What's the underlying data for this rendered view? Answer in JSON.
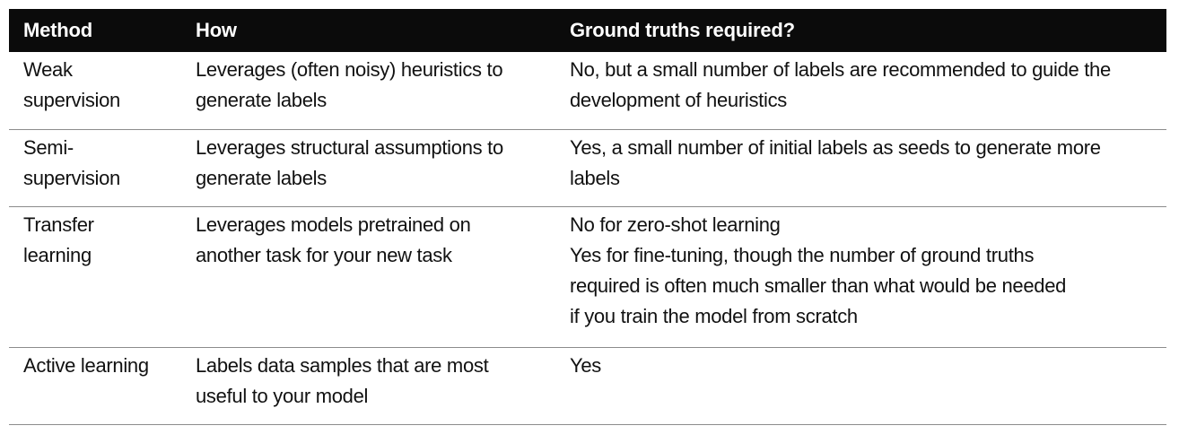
{
  "table": {
    "headers": [
      "Method",
      "How",
      "Ground truths required?"
    ],
    "rows": [
      {
        "method": [
          "Weak",
          "supervision"
        ],
        "how": [
          "Leverages (often noisy) heuristics to",
          "generate labels"
        ],
        "ground_truths": [
          "No, but a small number of labels are recommended to guide the",
          "development of heuristics"
        ]
      },
      {
        "method": [
          "Semi-",
          "supervision"
        ],
        "how": [
          "Leverages structural assumptions to",
          "generate labels"
        ],
        "ground_truths": [
          "Yes, a small number of initial labels as seeds to generate more",
          "labels"
        ]
      },
      {
        "method": [
          "Transfer",
          "learning"
        ],
        "how": [
          "Leverages models pretrained on",
          "another task for your new task"
        ],
        "ground_truths": [
          "No for zero-shot learning",
          "Yes for fine-tuning, though the number of ground truths",
          "required is often much smaller than what would be needed",
          "if you train the model from scratch"
        ]
      },
      {
        "method": [
          "Active learning"
        ],
        "how": [
          "Labels data samples that are most",
          "useful to your model"
        ],
        "ground_truths": [
          "Yes"
        ]
      }
    ]
  }
}
